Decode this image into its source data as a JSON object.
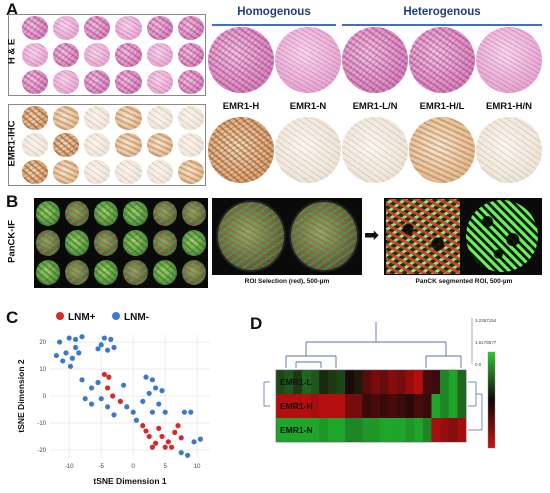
{
  "panels": {
    "A": {
      "letter": "A",
      "header_left": "Homogenous",
      "header_right": "Heterogenous",
      "row_label_he": "H & E",
      "row_label_ihc": "EMR1-IHC",
      "core_labels": [
        "EMR1-H",
        "EMR1-N",
        "EMR1-L/N",
        "EMR1-H/L",
        "EMR1-H/N"
      ]
    },
    "B": {
      "letter": "B",
      "row_label": "PanCK-IF",
      "caption_roi": "ROI Selection (red), 500-µm",
      "caption_seg": "PanCK segmented ROI, 500-µm"
    },
    "C": {
      "letter": "C"
    },
    "D": {
      "letter": "D",
      "row_labels": [
        "EMR1-L",
        "EMR1-H",
        "EMR1-N"
      ],
      "dendro_ticks": [
        "3.2357154",
        "1.6178577",
        "0.0"
      ]
    }
  },
  "colors": {
    "lnm_pos": "#d62a2a",
    "lnm_neg": "#3a7ac9",
    "heat_green": "#1fa12a",
    "heat_red": "#b01010",
    "heat_black": "#1a0a0a",
    "dendro": "#5a6fa8"
  },
  "chart_data": [
    {
      "type": "scatter",
      "xlabel": "tSNE Dimension 1",
      "ylabel": "tSNE Dimension 2",
      "xlim": [
        -13,
        12
      ],
      "ylim": [
        -23,
        23
      ],
      "xticks": [
        -10,
        -5,
        0,
        5,
        10
      ],
      "yticks": [
        20,
        10,
        0,
        -10,
        -20
      ],
      "legend_placement": "top",
      "series": [
        {
          "name": "LNM+",
          "color": "#d62a2a",
          "points": [
            [
              -4.5,
              8
            ],
            [
              -3.8,
              7
            ],
            [
              -4,
              3
            ],
            [
              -3.2,
              0
            ],
            [
              -2,
              -2
            ],
            [
              1.5,
              -11
            ],
            [
              2.5,
              -15
            ],
            [
              3,
              -19
            ],
            [
              3.5,
              -17.5
            ],
            [
              4.5,
              -15
            ],
            [
              5,
              -19
            ],
            [
              5.5,
              -17
            ],
            [
              6,
              -19
            ],
            [
              6.5,
              -13.5
            ],
            [
              7,
              -11
            ],
            [
              7.5,
              -15.5
            ],
            [
              2,
              -13
            ],
            [
              4,
              -12
            ]
          ]
        },
        {
          "name": "LNM-",
          "color": "#3a7ac9",
          "points": [
            [
              -12,
              15
            ],
            [
              -11,
              13
            ],
            [
              -10.5,
              16
            ],
            [
              -9.8,
              11
            ],
            [
              -9.5,
              14
            ],
            [
              -9,
              18
            ],
            [
              -8.5,
              16
            ],
            [
              -11.5,
              20
            ],
            [
              -9,
              21
            ],
            [
              -8,
              22
            ],
            [
              -10,
              21.5
            ],
            [
              -5,
              19
            ],
            [
              -4,
              17
            ],
            [
              -3.5,
              21
            ],
            [
              -4.5,
              21.5
            ],
            [
              -3,
              18
            ],
            [
              -5.5,
              17.5
            ],
            [
              -8,
              6
            ],
            [
              -6.5,
              3
            ],
            [
              -5.5,
              5
            ],
            [
              -5,
              -1
            ],
            [
              -6.5,
              -3
            ],
            [
              -4,
              -4
            ],
            [
              -3,
              -7
            ],
            [
              -1,
              -4
            ],
            [
              0,
              -6
            ],
            [
              0.5,
              -9
            ],
            [
              1.5,
              -2
            ],
            [
              2,
              7
            ],
            [
              3,
              6
            ],
            [
              3.5,
              3
            ],
            [
              2.5,
              1
            ],
            [
              4.5,
              2
            ],
            [
              4,
              -3
            ],
            [
              3,
              -6
            ],
            [
              5,
              -6
            ],
            [
              -7.5,
              -1
            ],
            [
              -1.5,
              4
            ],
            [
              8,
              -6
            ],
            [
              9,
              -6
            ],
            [
              9.5,
              -17
            ],
            [
              10.5,
              -16
            ],
            [
              8.5,
              -22
            ],
            [
              7.5,
              -21
            ]
          ]
        }
      ]
    },
    {
      "type": "heatmap",
      "rows": [
        "EMR1-L",
        "EMR1-H",
        "EMR1-N"
      ],
      "columns": 22,
      "scale_ticks": [
        "3.2357154",
        "1.6178577",
        "0.0"
      ],
      "values": [
        [
          -0.4,
          -0.5,
          -0.3,
          -0.6,
          -0.5,
          -0.2,
          -0.3,
          -0.4,
          0.0,
          -0.1,
          0.4,
          0.6,
          0.5,
          0.7,
          0.6,
          0.8,
          1.0,
          0.3,
          0.2,
          -0.8,
          -1.0,
          -0.6
        ],
        [
          1.0,
          1.0,
          1.0,
          1.0,
          0.9,
          1.0,
          1.0,
          1.0,
          0.6,
          0.6,
          0.2,
          0.3,
          0.2,
          0.3,
          0.2,
          0.1,
          0.3,
          0.2,
          -1.0,
          -0.8,
          -1.0,
          -0.6
        ],
        [
          -1.0,
          -1.0,
          -1.0,
          -1.0,
          -1.0,
          -0.9,
          -1.0,
          -1.0,
          -0.8,
          -0.8,
          -0.9,
          -0.9,
          -1.0,
          -1.0,
          -1.0,
          -0.9,
          -1.0,
          -0.8,
          0.9,
          0.8,
          0.7,
          0.9
        ]
      ]
    }
  ]
}
